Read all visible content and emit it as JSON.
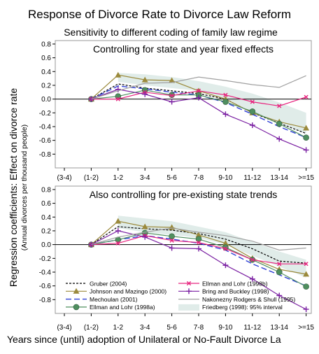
{
  "title": "Response of Divorce Rate to Divorce Law Reform",
  "subtitle": "Sensitivity to different coding of family law regime",
  "ylabel": "Regression coefficients: Effect on divorce rate",
  "ylabel_sub": "(Annual divorces per thousand people)",
  "xlabel": "Years since (until) adoption of Unilateral or No-Fault Divorce La",
  "colors": {
    "background": "#ffffff",
    "panel_border": "#999999",
    "ci_fill": "#e0ece9"
  },
  "legend": {
    "placement": "bottom-inside-lower-panel",
    "items": [
      {
        "label": "Gruber (2004)",
        "series": 0
      },
      {
        "label": "Johnson and Mazingo (2000)",
        "series": 1
      },
      {
        "label": "Mechoulan (2001)",
        "series": 2
      },
      {
        "label": "Ellman and Lohr (1998a)",
        "series": 3
      },
      {
        "label": "Ellman and Lohr (1998b)",
        "series": 4
      },
      {
        "label": "Bring and Buckley (1998)",
        "series": 5
      },
      {
        "label": "Nakonezny Rodgers & Shull (1995)",
        "series": 6
      },
      {
        "label": "Friedberg (1998): 95% interval",
        "series": "band"
      }
    ]
  },
  "chart_data": [
    {
      "type": "line",
      "title": "Controlling for state and year fixed effects",
      "categories": [
        "(3-4)",
        "(1-2)",
        "1-2",
        "3-4",
        "5-6",
        "7-8",
        "9-10",
        "11-12",
        "13-14",
        ">=15"
      ],
      "ylim": [
        -1.0,
        0.85
      ],
      "yticks": [
        0.8,
        0.6,
        0.4,
        0.2,
        0.0,
        -0.2,
        -0.4,
        -0.6,
        -0.8
      ],
      "ytick_labels": [
        "0.8",
        "0.6",
        "0.4",
        "0.2",
        "0.0",
        "-0.2",
        "-0.4",
        "-0.6",
        "-0.8"
      ],
      "grid": false,
      "zero_line": true,
      "series": [
        {
          "name": "Gruber (2004)",
          "color": "#000000",
          "dash": "3,2",
          "marker": "none",
          "width": 1.2,
          "values": [
            null,
            0.0,
            0.22,
            0.16,
            0.12,
            0.08,
            0.0,
            -0.2,
            -0.35,
            -0.5
          ]
        },
        {
          "name": "Johnson and Mazingo (2000)",
          "color": "#9b8a3c",
          "dash": "",
          "marker": "triangle",
          "width": 1.2,
          "values": [
            null,
            0.0,
            0.35,
            0.28,
            0.27,
            0.12,
            0.0,
            -0.2,
            -0.33,
            -0.42
          ]
        },
        {
          "name": "Mechoulan (2001)",
          "color": "#2e3fd6",
          "dash": "8,4",
          "marker": "none",
          "width": 1.4,
          "values": [
            null,
            0.0,
            0.19,
            0.15,
            0.1,
            0.06,
            -0.05,
            -0.22,
            -0.4,
            -0.56
          ]
        },
        {
          "name": "Ellman and Lohr (1998a)",
          "color": "#4f8f5f",
          "dash": "",
          "marker": "circle",
          "width": 1.2,
          "values": [
            null,
            0.0,
            0.04,
            0.13,
            0.06,
            0.06,
            -0.04,
            -0.18,
            -0.36,
            -0.56
          ]
        },
        {
          "name": "Ellman and Lohr (1998b)",
          "color": "#e8247f",
          "dash": "",
          "marker": "x",
          "width": 1.2,
          "values": [
            null,
            0.0,
            0.0,
            0.1,
            0.05,
            0.12,
            0.06,
            -0.04,
            -0.1,
            0.03
          ]
        },
        {
          "name": "Bring and Buckley (1998)",
          "color": "#7a1fa2",
          "dash": "",
          "marker": "plus",
          "width": 1.2,
          "values": [
            null,
            0.0,
            0.14,
            0.07,
            -0.04,
            0.02,
            -0.22,
            -0.38,
            -0.58,
            -0.74
          ]
        },
        {
          "name": "Nakonezny Rodgers & Shull (1995)",
          "color": "#a0a0a0",
          "dash": "",
          "marker": "none",
          "width": 1.2,
          "values": [
            null,
            0.0,
            0.12,
            0.23,
            0.24,
            0.32,
            0.27,
            0.21,
            0.17,
            0.34
          ]
        }
      ],
      "band": {
        "name": "Friedberg (1998): 95% interval",
        "color": "#e0ece9",
        "x_start": 2,
        "upper": [
          0.38,
          0.36,
          0.32,
          0.26,
          0.18,
          0.08,
          -0.05,
          -0.2
        ],
        "lower": [
          0.25,
          0.2,
          0.16,
          0.12,
          0.0,
          -0.18,
          -0.35,
          -0.5
        ]
      }
    },
    {
      "type": "line",
      "title": "Also controlling for pre-existing state trends",
      "categories": [
        "(3-4)",
        "(1-2)",
        "1-2",
        "3-4",
        "5-6",
        "7-8",
        "9-10",
        "11-12",
        "13-14",
        ">=15"
      ],
      "ylim": [
        -1.0,
        0.85
      ],
      "yticks": [
        0.8,
        0.6,
        0.4,
        0.2,
        0.0,
        -0.2,
        -0.4,
        -0.6,
        -0.8
      ],
      "ytick_labels": [
        "0.8",
        "0.6",
        "0.4",
        "0.2",
        "0.0",
        "-0.2",
        "-0.4",
        "-0.6",
        "-0.8"
      ],
      "grid": false,
      "zero_line": true,
      "series": [
        {
          "name": "Gruber (2004)",
          "color": "#000000",
          "dash": "3,2",
          "marker": "none",
          "width": 1.2,
          "values": [
            null,
            0.0,
            0.26,
            0.23,
            0.21,
            0.16,
            0.08,
            -0.06,
            -0.24,
            -0.27
          ]
        },
        {
          "name": "Johnson and Mazingo (2000)",
          "color": "#9b8a3c",
          "dash": "",
          "marker": "triangle",
          "width": 1.2,
          "values": [
            null,
            0.0,
            0.34,
            0.26,
            0.25,
            0.14,
            0.02,
            -0.2,
            -0.36,
            -0.43
          ]
        },
        {
          "name": "Mechoulan (2001)",
          "color": "#2e3fd6",
          "dash": "8,4",
          "marker": "none",
          "width": 1.4,
          "values": [
            null,
            0.0,
            0.07,
            0.13,
            0.08,
            0.02,
            -0.08,
            -0.28,
            -0.44,
            -0.6
          ]
        },
        {
          "name": "Ellman and Lohr (1998a)",
          "color": "#4f8f5f",
          "dash": "",
          "marker": "circle",
          "width": 1.2,
          "values": [
            null,
            0.0,
            0.07,
            0.17,
            0.12,
            0.08,
            -0.04,
            -0.22,
            -0.4,
            -0.61
          ]
        },
        {
          "name": "Ellman and Lohr (1998b)",
          "color": "#e8247f",
          "dash": "",
          "marker": "x",
          "width": 1.2,
          "values": [
            null,
            0.0,
            0.02,
            0.13,
            0.06,
            0.03,
            -0.06,
            -0.22,
            -0.28,
            -0.28
          ]
        },
        {
          "name": "Bring and Buckley (1998)",
          "color": "#7a1fa2",
          "dash": "",
          "marker": "plus",
          "width": 1.2,
          "values": [
            null,
            0.0,
            0.2,
            0.11,
            -0.05,
            -0.06,
            -0.3,
            -0.5,
            -0.74,
            -0.94
          ]
        },
        {
          "name": "Nakonezny Rodgers & Shull (1995)",
          "color": "#a0a0a0",
          "dash": "",
          "marker": "none",
          "width": 1.2,
          "values": [
            null,
            0.0,
            0.11,
            0.18,
            0.24,
            0.18,
            0.13,
            0.05,
            -0.08,
            -0.05
          ]
        }
      ],
      "band": {
        "name": "Friedberg (1998): 95% interval",
        "color": "#e0ece9",
        "x_start": 2,
        "upper": [
          0.42,
          0.38,
          0.34,
          0.26,
          0.18,
          0.04,
          -0.1,
          -0.22
        ],
        "lower": [
          0.24,
          0.18,
          0.14,
          0.1,
          0.0,
          -0.16,
          -0.32,
          -0.48
        ]
      }
    }
  ]
}
